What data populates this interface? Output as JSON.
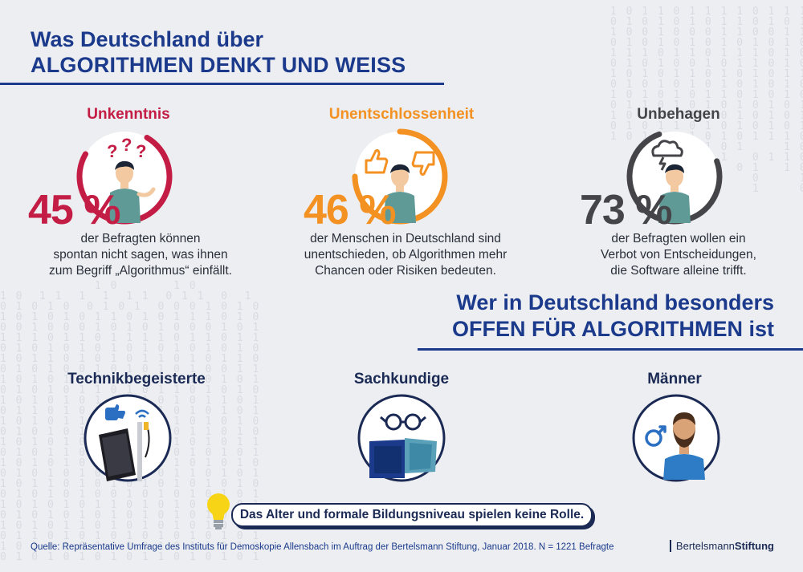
{
  "header": {
    "title_line1": "Was Deutschland über",
    "title_line2": "ALGORITHMEN DENKT UND WEISS"
  },
  "stats": [
    {
      "label": "Unkenntnis",
      "percent": "45 %",
      "text_line1": "der Befragten können",
      "text_line2": "spontan nicht sagen, was ihnen",
      "text_line3": "zum Begriff „Algorithmus“ einfällt.",
      "color": "#c41d45"
    },
    {
      "label": "Unentschlossenheit",
      "percent": "46 %",
      "text_line1": "der Menschen in Deutschland sind",
      "text_line2": "unentschieden, ob Algorithmen mehr",
      "text_line3": "Chancen oder Risiken bedeuten.",
      "color": "#f39123"
    },
    {
      "label": "Unbehagen",
      "percent": "73 %",
      "text_line1": "der Befragten wollen ein",
      "text_line2": "Verbot von Entscheidungen,",
      "text_line3": "die Software alleine trifft.",
      "color": "#454549"
    }
  ],
  "section2": {
    "title_line1": "Wer in Deutschland besonders",
    "title_line2": "OFFEN FÜR ALGORITHMEN ist"
  },
  "groups": [
    {
      "label": "Technikbegeisterte",
      "icon": "smartphone-like-icon"
    },
    {
      "label": "Sachkundige",
      "icon": "glasses-books-icon"
    },
    {
      "label": "Männer",
      "icon": "male-person-icon"
    }
  ],
  "note": {
    "text": "Das Alter und formale Bildungsniveau spielen keine Rolle.",
    "icon": "lightbulb-icon"
  },
  "footer": {
    "source": "Quelle: Repräsentative Umfrage des Instituts für Demoskopie Allensbach im Auftrag der Bertelsmann Stiftung, Januar 2018. N = 1221 Befragte",
    "brand_part1": "Bertelsmann",
    "brand_part2": "Stiftung"
  },
  "colors": {
    "navy": "#1b3a8c",
    "red": "#c41d45",
    "orange": "#f39123",
    "dark": "#454549",
    "teal_shirt": "#5f9a96"
  }
}
